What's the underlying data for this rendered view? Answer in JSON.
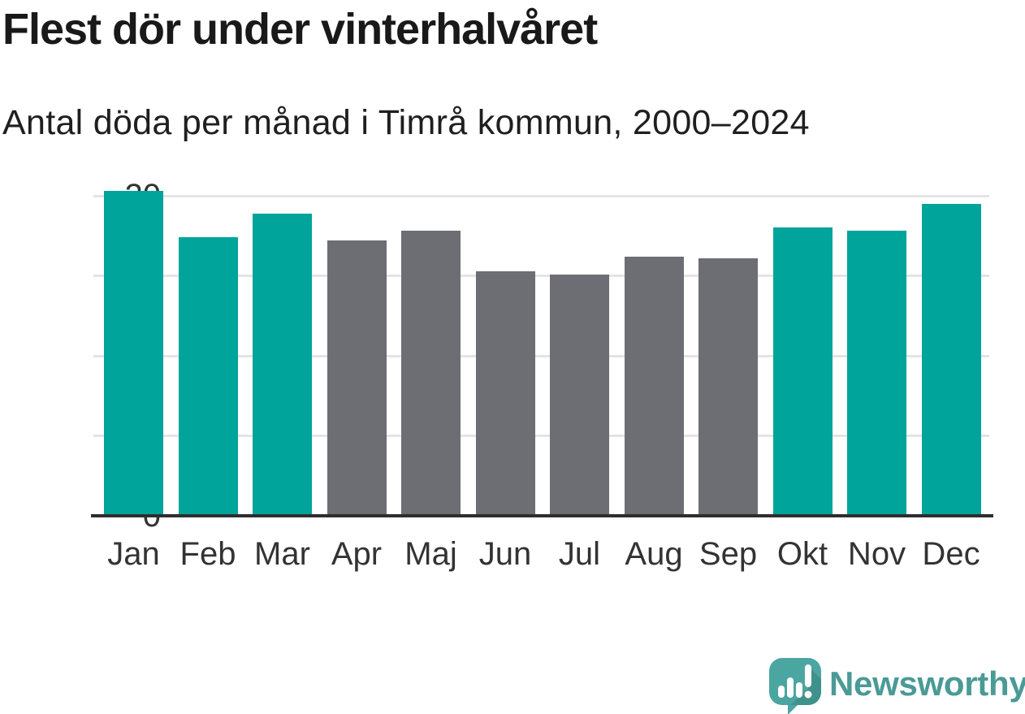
{
  "header": {
    "title": "Flest dör under vinterhalvåret",
    "subtitle": "Antal döda per månad i Timrå kommun, 2000–2024"
  },
  "chart_data": {
    "type": "bar",
    "title": "Flest dör under vinterhalvåret",
    "subtitle": "Antal döda per månad i Timrå kommun, 2000–2024",
    "categories": [
      "Jan",
      "Feb",
      "Mar",
      "Apr",
      "Maj",
      "Jun",
      "Jul",
      "Aug",
      "Sep",
      "Okt",
      "Nov",
      "Dec"
    ],
    "values": [
      20.3,
      17.4,
      18.9,
      17.2,
      17.8,
      15.3,
      15.1,
      16.2,
      16.1,
      18.0,
      17.8,
      19.5
    ],
    "bar_seasons": [
      "winter",
      "winter",
      "winter",
      "summer",
      "summer",
      "summer",
      "summer",
      "summer",
      "summer",
      "winter",
      "winter",
      "winter"
    ],
    "colors": {
      "winter": "#00a49b",
      "summer": "#6d6d74"
    },
    "xlabel": "",
    "ylabel": "",
    "y_ticks": [
      0,
      5,
      10,
      15,
      20
    ],
    "ylim": [
      0,
      20.8
    ],
    "grid": true,
    "legend_position": "none",
    "gridline_color": "#e4e4e4",
    "axis_color": "#2e2e2e",
    "tick_label_color": "#333333"
  },
  "footer": {
    "brand": "Newsworthy",
    "brand_color": "#4a9a96",
    "logo_icon": "newsworthy-speech-bubble-bar-chart-icon",
    "logo_bubble_color": "#4ba6a1",
    "logo_shadow_color": "#3f918c"
  }
}
